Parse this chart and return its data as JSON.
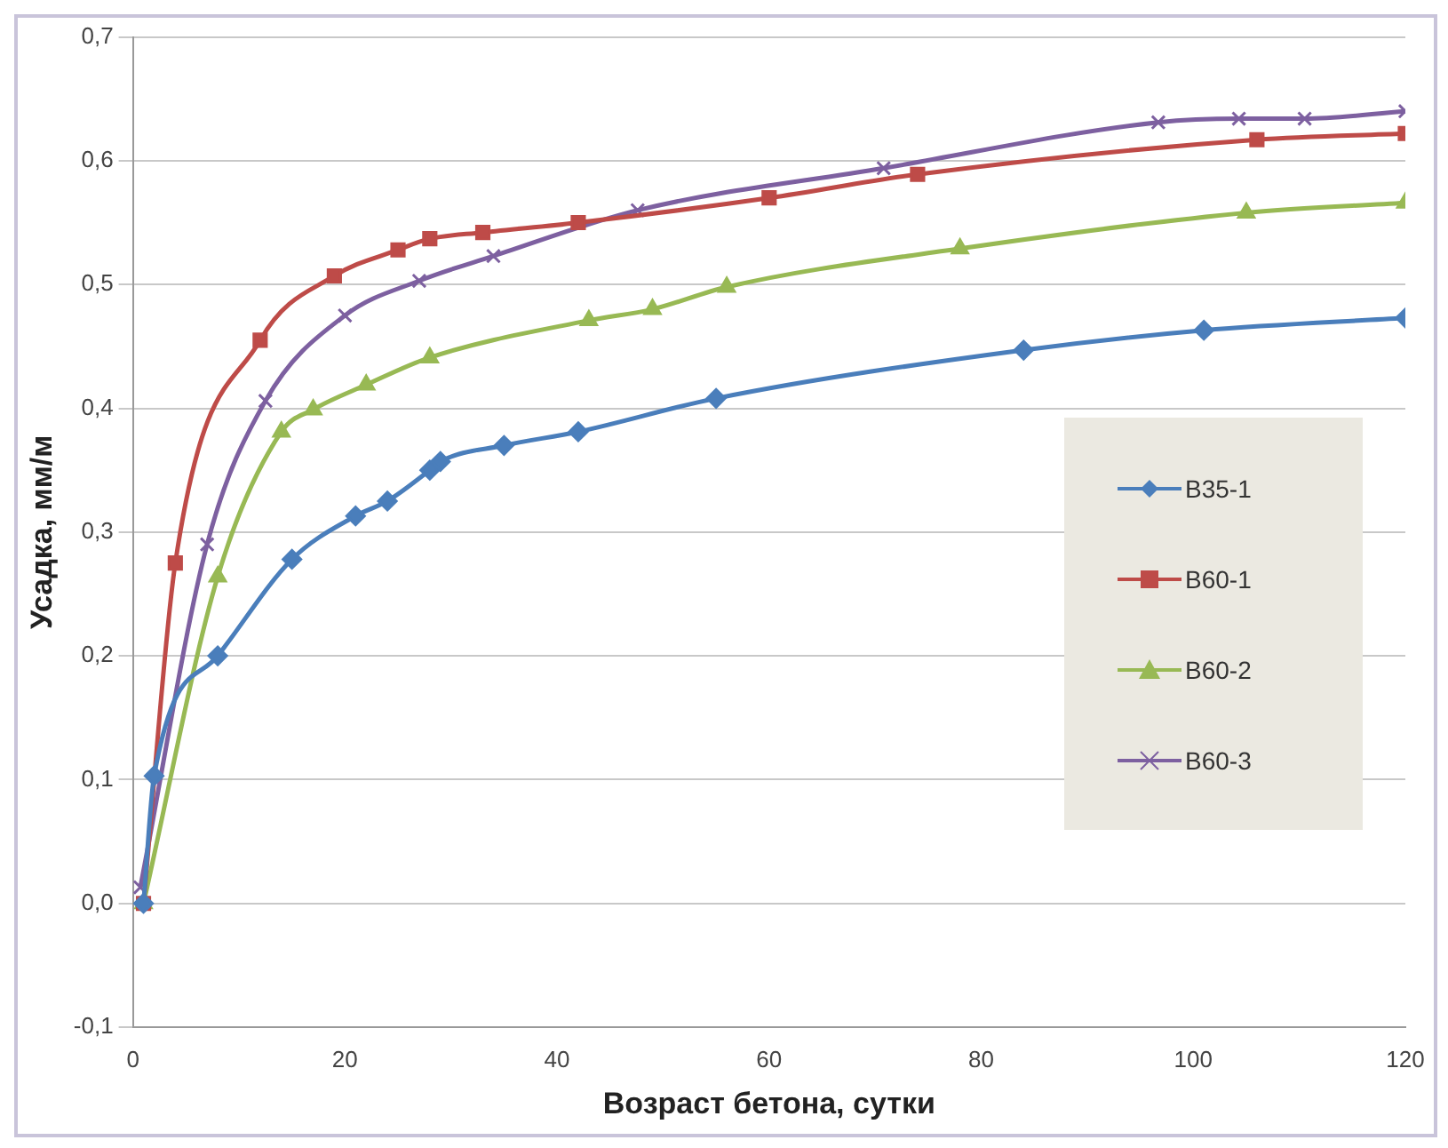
{
  "chart_data": {
    "type": "line",
    "xlabel": "Возраст бетона, сутки",
    "ylabel": "Усадка, мм/м",
    "xlim": [
      0,
      120
    ],
    "xticks": [
      0,
      20,
      40,
      60,
      80,
      100,
      120
    ],
    "ylim": [
      -0.1,
      0.7
    ],
    "yticks": [
      {
        "value": -0.1,
        "label": "-0,1"
      },
      {
        "value": 0,
        "label": "0,0"
      },
      {
        "value": 0.1,
        "label": "0,1"
      },
      {
        "value": 0.2,
        "label": "0,2"
      },
      {
        "value": 0.3,
        "label": "0,3"
      },
      {
        "value": 0.4,
        "label": "0,4"
      },
      {
        "value": 0.5,
        "label": "0,5"
      },
      {
        "value": 0.6,
        "label": "0,6"
      },
      {
        "value": 0.7,
        "label": "0,7"
      }
    ],
    "grid": "y",
    "legend": "right",
    "series": [
      {
        "name": "B35-1",
        "color": "#4a7ebb",
        "marker": "diamond",
        "x": [
          1,
          2,
          8,
          15,
          21,
          24,
          28,
          29,
          35,
          42,
          55,
          84,
          101,
          120
        ],
        "values": [
          0.0,
          0.103,
          0.2,
          0.278,
          0.313,
          0.325,
          0.35,
          0.357,
          0.37,
          0.381,
          0.408,
          0.447,
          0.463,
          0.473
        ]
      },
      {
        "name": "B60-1",
        "color": "#be4b48",
        "marker": "square",
        "x": [
          1,
          4,
          12,
          19,
          25,
          28,
          33,
          42,
          60,
          74,
          106,
          120
        ],
        "values": [
          0.0,
          0.275,
          0.455,
          0.507,
          0.528,
          0.537,
          0.542,
          0.55,
          0.57,
          0.589,
          0.617,
          0.622
        ]
      },
      {
        "name": "B60-2",
        "color": "#98b954",
        "marker": "triangle",
        "x": [
          1,
          8,
          14,
          17,
          22,
          28,
          43,
          49,
          56,
          78,
          105,
          120
        ],
        "values": [
          0.0,
          0.264,
          0.381,
          0.399,
          0.419,
          0.441,
          0.471,
          0.48,
          0.498,
          0.529,
          0.558,
          0.566
        ]
      },
      {
        "name": "B60-3",
        "color": "#7d60a0",
        "marker": "cross",
        "x": [
          0.7,
          7,
          12.5,
          20,
          27,
          34,
          47.6,
          70.8,
          96.7,
          104.3,
          110.5,
          120
        ],
        "values": [
          0.013,
          0.29,
          0.406,
          0.475,
          0.503,
          0.523,
          0.56,
          0.594,
          0.631,
          0.634,
          0.634,
          0.64
        ]
      }
    ]
  }
}
